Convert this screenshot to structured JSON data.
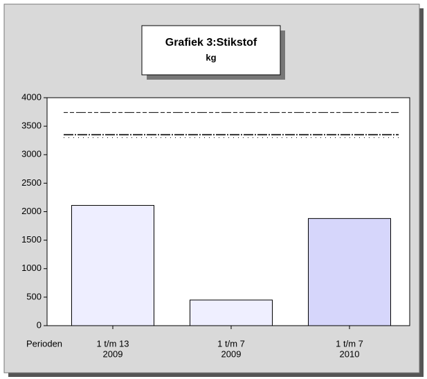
{
  "chart_data": {
    "type": "bar",
    "title": "Grafiek 3:Stikstof",
    "subtitle": "kg",
    "x_label": "Perioden",
    "categories": [
      [
        "1 t/m 13",
        "2009"
      ],
      [
        "1 t/m 7",
        "2009"
      ],
      [
        "1 t/m 7",
        "2010"
      ]
    ],
    "values": [
      2110,
      450,
      1880
    ],
    "colors": [
      "#eeeeff",
      "#efefff",
      "#d6d6fb"
    ],
    "ylim": [
      0,
      4000
    ],
    "yticks": [
      0,
      500,
      1000,
      1500,
      2000,
      2500,
      3000,
      3500,
      4000
    ],
    "reference_lines": [
      {
        "value": 3740,
        "style": "dashed"
      },
      {
        "value": 3350,
        "style": "dashdot"
      },
      {
        "value": 3300,
        "style": "dotted"
      }
    ]
  }
}
